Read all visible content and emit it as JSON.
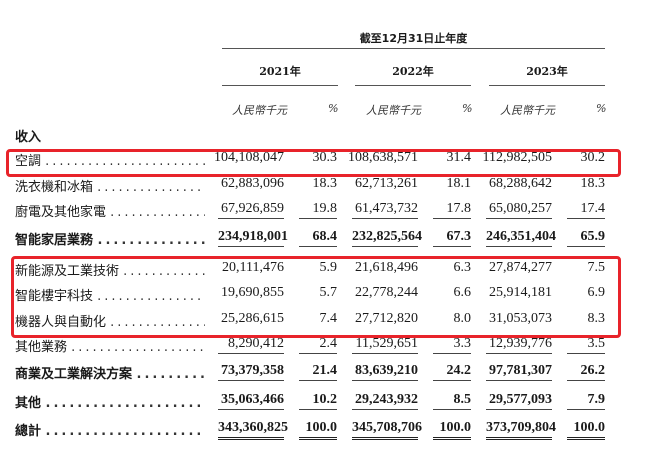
{
  "header": {
    "period_title": "截至12月31日止年度",
    "years": [
      "2021年",
      "2022年",
      "2023年"
    ],
    "unit_amount": "人民幣千元",
    "unit_pct": "%"
  },
  "section_title": "收入",
  "rows": [
    {
      "label": "空調",
      "values": [
        "104,108,047",
        "30.3",
        "108,638,571",
        "31.4",
        "112,982,505",
        "30.2"
      ]
    },
    {
      "label": "洗衣機和冰箱",
      "values": [
        "62,883,096",
        "18.3",
        "62,713,261",
        "18.1",
        "68,288,642",
        "18.3"
      ]
    },
    {
      "label": "廚電及其他家電",
      "values": [
        "67,926,859",
        "19.8",
        "61,473,732",
        "17.8",
        "65,080,257",
        "17.4"
      ]
    },
    {
      "label": "智能家居業務",
      "values": [
        "234,918,001",
        "68.4",
        "232,825,564",
        "67.3",
        "246,351,404",
        "65.9"
      ]
    },
    {
      "label": "新能源及工業技術",
      "values": [
        "20,111,476",
        "5.9",
        "21,618,496",
        "6.3",
        "27,874,277",
        "7.5"
      ]
    },
    {
      "label": "智能樓宇科技",
      "values": [
        "19,690,855",
        "5.7",
        "22,778,244",
        "6.6",
        "25,914,181",
        "6.9"
      ]
    },
    {
      "label": "機器人與自動化",
      "values": [
        "25,286,615",
        "7.4",
        "27,712,820",
        "8.0",
        "31,053,073",
        "8.3"
      ]
    },
    {
      "label": "其他業務",
      "values": [
        "8,290,412",
        "2.4",
        "11,529,651",
        "3.3",
        "12,939,776",
        "3.5"
      ]
    },
    {
      "label": "商業及工業解決方案",
      "values": [
        "73,379,358",
        "21.4",
        "83,639,210",
        "24.2",
        "97,781,307",
        "26.2"
      ]
    },
    {
      "label": "其他",
      "values": [
        "35,063,466",
        "10.2",
        "29,243,932",
        "8.5",
        "29,577,093",
        "7.9"
      ]
    },
    {
      "label": "總計",
      "values": [
        "343,360,825",
        "100.0",
        "345,708,706",
        "100.0",
        "373,709,804",
        "100.0"
      ]
    }
  ],
  "dots": "..........................",
  "highlight_color": "#e8232a"
}
